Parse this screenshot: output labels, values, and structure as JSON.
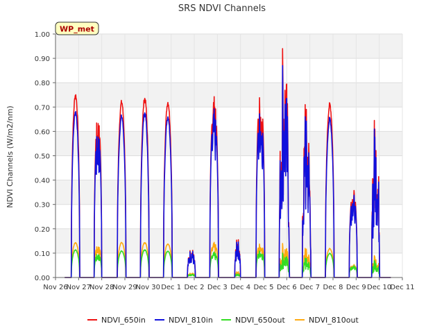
{
  "chart_data": {
    "type": "line",
    "title": "SRS NDVI Channels",
    "ylabel": "NDVI Channels (W/m2/nm)",
    "xlabel": "",
    "badge": "WP_met",
    "ylim": [
      0,
      1.0
    ],
    "xlim": [
      0,
      15
    ],
    "y_ticks": [
      0.0,
      0.1,
      0.2,
      0.3,
      0.4,
      0.5,
      0.6,
      0.7,
      0.8,
      0.9,
      1.0
    ],
    "y_tick_labels": [
      "0.00",
      "0.10",
      "0.20",
      "0.30",
      "0.40",
      "0.50",
      "0.60",
      "0.70",
      "0.80",
      "0.90",
      "1.00"
    ],
    "x_ticks": [
      0,
      1,
      2,
      3,
      4,
      5,
      6,
      7,
      8,
      9,
      10,
      11,
      12,
      13,
      14,
      15
    ],
    "x_tick_labels": [
      "Nov 26",
      "Nov 27",
      "Nov 28",
      "Nov 29",
      "Nov 30",
      "Dec 1",
      "Dec 2",
      "Dec 3",
      "Dec 4",
      "Dec 5",
      "Dec 6",
      "Dec 7",
      "Dec 8",
      "Dec 9",
      "Dec 10",
      "Dec 11"
    ],
    "grid": true,
    "legend_position": "bottom",
    "days": [
      {
        "day": 1,
        "start": 0.68,
        "end": 1.05,
        "profile": "smooth",
        "in650": 0.76,
        "in810": 0.69,
        "out650": 0.115,
        "out810": 0.145
      },
      {
        "day": 2,
        "start": 1.67,
        "end": 2.0,
        "profile": "cloudy",
        "in650": 0.68,
        "in810": 0.62,
        "out650": 0.1,
        "out810": 0.135
      },
      {
        "day": 3,
        "start": 2.67,
        "end": 3.05,
        "profile": "smooth",
        "in650": 0.73,
        "in810": 0.67,
        "out650": 0.11,
        "out810": 0.145
      },
      {
        "day": 4,
        "start": 3.67,
        "end": 4.05,
        "profile": "smooth",
        "in650": 0.745,
        "in810": 0.685,
        "out650": 0.115,
        "out810": 0.145
      },
      {
        "day": 5,
        "start": 4.67,
        "end": 5.05,
        "profile": "smooth",
        "in650": 0.73,
        "in810": 0.67,
        "out650": 0.11,
        "out810": 0.14
      },
      {
        "day": 6,
        "start": 5.7,
        "end": 6.05,
        "profile": "low",
        "in650": 0.125,
        "in810": 0.12,
        "out650": 0.015,
        "out810": 0.02
      },
      {
        "day": 7,
        "start": 6.67,
        "end": 7.05,
        "profile": "cloudy",
        "in650": 0.745,
        "in810": 0.695,
        "out650": 0.105,
        "out810": 0.145
      },
      {
        "day": 8,
        "start": 7.75,
        "end": 8.0,
        "profile": "low",
        "in650": 0.165,
        "in810": 0.155,
        "out650": 0.015,
        "out810": 0.025
      },
      {
        "day": 9,
        "start": 8.67,
        "end": 9.05,
        "profile": "cloudy",
        "in650": 0.78,
        "in810": 0.71,
        "out650": 0.115,
        "out810": 0.145
      },
      {
        "day": 10,
        "start": 9.67,
        "end": 10.12,
        "profile": "spiky",
        "in650": 0.94,
        "in810": 0.87,
        "out650": 0.1,
        "out810": 0.14
      },
      {
        "day": 11,
        "start": 10.67,
        "end": 11.05,
        "profile": "spiky",
        "in650": 0.71,
        "in810": 0.66,
        "out650": 0.08,
        "out810": 0.12
      },
      {
        "day": 12,
        "start": 11.67,
        "end": 12.05,
        "profile": "smooth",
        "in650": 0.72,
        "in810": 0.66,
        "out650": 0.1,
        "out810": 0.12
      },
      {
        "day": 13,
        "start": 12.7,
        "end": 13.05,
        "profile": "cloudy",
        "in650": 0.37,
        "in810": 0.35,
        "out650": 0.05,
        "out810": 0.055
      },
      {
        "day": 14,
        "start": 13.67,
        "end": 14.02,
        "profile": "spiky",
        "in650": 0.645,
        "in810": 0.61,
        "out650": 0.07,
        "out810": 0.09
      }
    ],
    "series": [
      {
        "name": "NDVI_650in",
        "key": "in650",
        "color": "#ee1111"
      },
      {
        "name": "NDVI_810in",
        "key": "in810",
        "color": "#1111dd"
      },
      {
        "name": "NDVI_650out",
        "key": "out650",
        "color": "#33dd22"
      },
      {
        "name": "NDVI_810out",
        "key": "out810",
        "color": "#ffaa11"
      }
    ]
  }
}
